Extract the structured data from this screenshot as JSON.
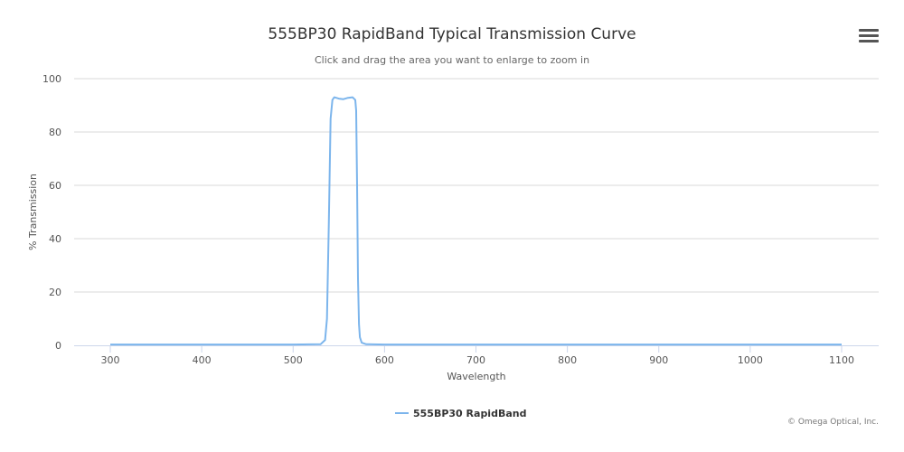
{
  "chart_data": {
    "type": "line",
    "title": "555BP30 RapidBand Typical Transmission Curve",
    "subtitle": "Click and drag the area you want to enlarge to zoom in",
    "xlabel": "Wavelength",
    "ylabel": "% Transmission",
    "xlim": [
      300,
      1100
    ],
    "ylim": [
      0,
      100
    ],
    "xticks": [
      300,
      400,
      500,
      600,
      700,
      800,
      900,
      1000,
      1100
    ],
    "yticks": [
      0,
      20,
      40,
      60,
      80,
      100
    ],
    "grid": "horizontal",
    "legend": "bottom-center",
    "series": [
      {
        "name": "555BP30 RapidBand",
        "color": "#7cb5ec",
        "x": [
          300,
          400,
          500,
          530,
          535,
          537,
          539,
          541,
          543,
          545,
          550,
          555,
          560,
          565,
          568,
          569,
          570,
          571,
          572,
          573,
          575,
          580,
          600,
          700,
          800,
          900,
          1000,
          1100
        ],
        "y": [
          0.3,
          0.3,
          0.3,
          0.4,
          2,
          10,
          45,
          85,
          92,
          93,
          92.5,
          92.3,
          92.8,
          93,
          92,
          88,
          60,
          25,
          8,
          3,
          1,
          0.4,
          0.3,
          0.3,
          0.3,
          0.3,
          0.3,
          0.3
        ]
      }
    ]
  },
  "credit": "© Omega Optical, Inc.",
  "menu_icon": "hamburger-menu-icon"
}
